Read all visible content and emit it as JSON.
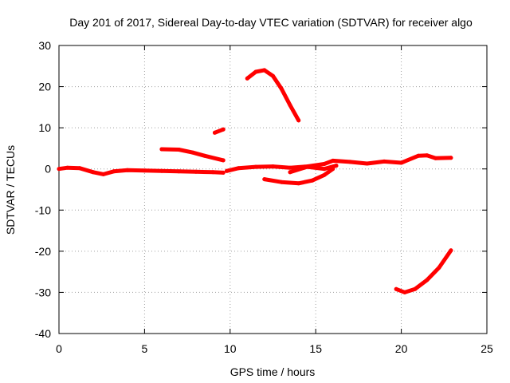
{
  "chart_data": {
    "type": "line",
    "title": "Day 201 of 2017, Sidereal Day-to-day VTEC variation (SDTVAR) for receiver algo",
    "xlabel": "GPS time / hours",
    "ylabel": "SDTVAR / TECUs",
    "xlim": [
      0,
      25
    ],
    "ylim": [
      -40,
      30
    ],
    "xticks": [
      0,
      5,
      10,
      15,
      20,
      25
    ],
    "yticks": [
      -40,
      -30,
      -20,
      -10,
      0,
      10,
      20,
      30
    ],
    "xtick_labels": [
      "0",
      "5",
      "10",
      "15",
      "20",
      "25"
    ],
    "ytick_labels": [
      "-40",
      "-30",
      "-20",
      "-10",
      "0",
      "10",
      "20",
      "30"
    ],
    "grid": true,
    "color": "#ff0000",
    "series": [
      {
        "name": "arc-main-left",
        "x": [
          0,
          0.5,
          1.2,
          2.0,
          2.6,
          3.2,
          4.0,
          5.0,
          6.0,
          7.0,
          8.0,
          9.0,
          9.6
        ],
        "y": [
          0.0,
          0.3,
          0.2,
          -0.8,
          -1.3,
          -0.6,
          -0.3,
          -0.4,
          -0.5,
          -0.6,
          -0.7,
          -0.8,
          -0.9
        ]
      },
      {
        "name": "arc-main-right",
        "x": [
          9.8,
          10.5,
          11.5,
          12.5,
          13.5,
          14.5,
          15.5,
          16.0,
          17.0,
          18.0,
          19.0,
          20.0,
          21.0,
          21.5,
          22.0,
          22.9
        ],
        "y": [
          -0.5,
          0.2,
          0.5,
          0.6,
          0.3,
          0.6,
          1.2,
          2.0,
          1.7,
          1.3,
          1.8,
          1.5,
          3.2,
          3.3,
          2.6,
          2.7
        ]
      },
      {
        "name": "arc-6-9h",
        "x": [
          6.0,
          7.0,
          7.8,
          8.5,
          9.6
        ],
        "y": [
          4.8,
          4.7,
          4.0,
          3.2,
          2.1
        ]
      },
      {
        "name": "arc-9h-short",
        "x": [
          9.1,
          9.6
        ],
        "y": [
          8.8,
          9.6
        ]
      },
      {
        "name": "arc-11-14h",
        "x": [
          11.0,
          11.5,
          12.0,
          12.5,
          13.0,
          13.5,
          14.0
        ],
        "y": [
          22.0,
          23.6,
          24.0,
          22.6,
          19.5,
          15.5,
          11.8
        ]
      },
      {
        "name": "arc-12-16h",
        "x": [
          12.0,
          13.0,
          14.0,
          14.8,
          15.5,
          16.0
        ],
        "y": [
          -2.5,
          -3.2,
          -3.5,
          -2.8,
          -1.5,
          0.0
        ]
      },
      {
        "name": "arc-13-16h",
        "x": [
          13.5,
          14.5,
          15.5,
          16.2
        ],
        "y": [
          -0.8,
          0.5,
          0.0,
          0.8
        ]
      },
      {
        "name": "arc-20-23h",
        "x": [
          19.7,
          20.2,
          20.8,
          21.5,
          22.2,
          22.9
        ],
        "y": [
          -29.2,
          -30.0,
          -29.2,
          -27.0,
          -24.0,
          -19.8
        ]
      }
    ]
  }
}
